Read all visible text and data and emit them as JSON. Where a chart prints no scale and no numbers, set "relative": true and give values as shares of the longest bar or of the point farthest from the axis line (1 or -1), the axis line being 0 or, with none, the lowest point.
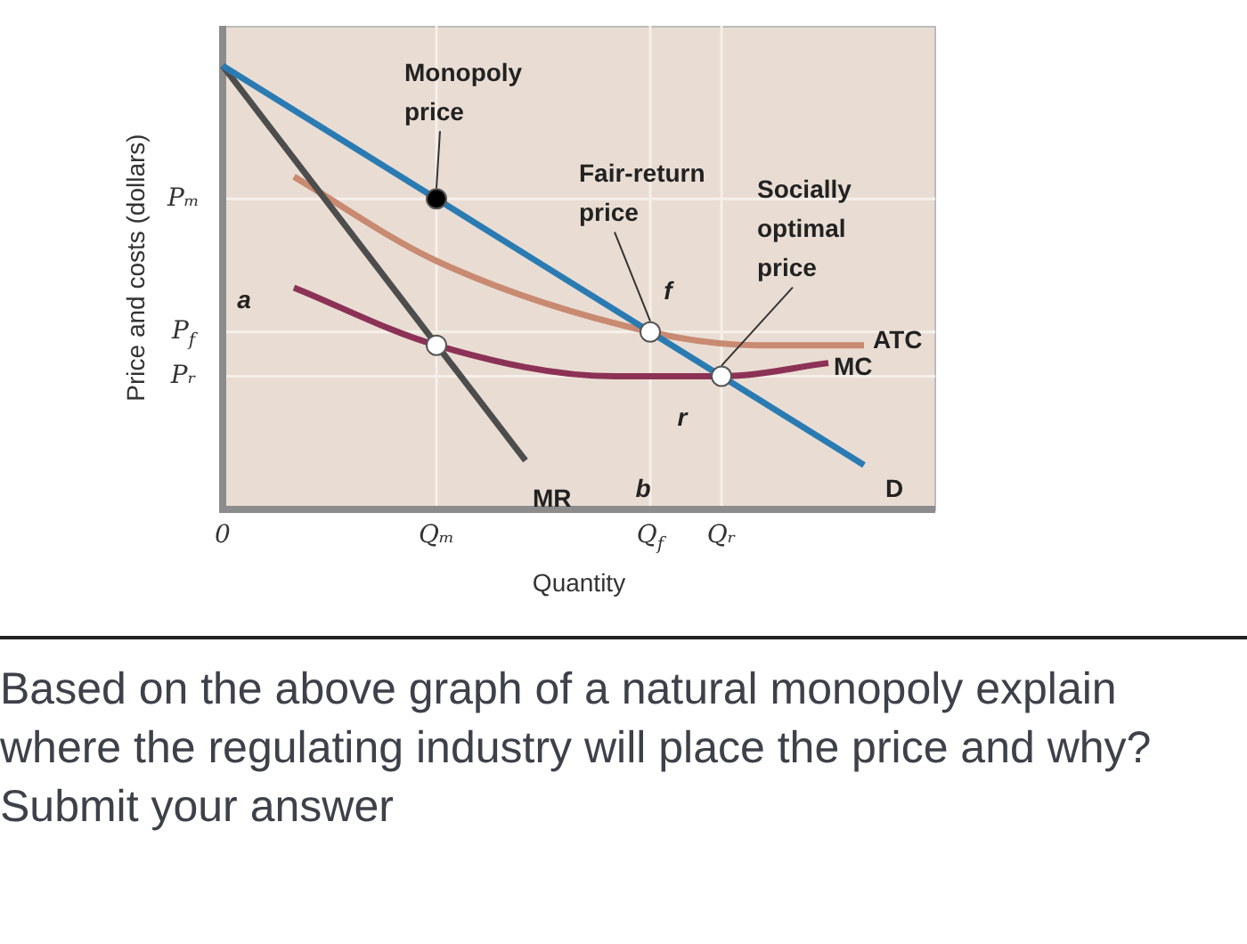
{
  "chart_data": {
    "type": "line",
    "relative": true,
    "xlabel": "Quantity",
    "ylabel": "Price and costs (dollars)",
    "categories": [
      "0",
      null,
      null,
      null,
      null,
      null,
      null,
      null,
      null,
      null,
      null,
      null,
      "Qₘ",
      null,
      null,
      null,
      null,
      null,
      null,
      null,
      null,
      null,
      null,
      null,
      "Q$_{f}$",
      null,
      null,
      null,
      "Qᵣ",
      null,
      null,
      null,
      null,
      null,
      null,
      null,
      null,
      null,
      null,
      null,
      null
    ],
    "series": [
      {
        "name": "D",
        "color": "#2b7bb3",
        "values": [
          1,
          null,
          null,
          null,
          null,
          null,
          null,
          null,
          null,
          null,
          null,
          null,
          null,
          null,
          null,
          null,
          null,
          null,
          null,
          null,
          null,
          null,
          null,
          null,
          null,
          null,
          null,
          null,
          null,
          null,
          null,
          null,
          null,
          null,
          null,
          null,
          0.1,
          null,
          null,
          null,
          null
        ]
      },
      {
        "name": "MR",
        "color": "#4d4d4d",
        "values": [
          1,
          null,
          null,
          null,
          null,
          null,
          null,
          null,
          null,
          null,
          null,
          null,
          null,
          null,
          null,
          null,
          null,
          0.11,
          null,
          null,
          null,
          null,
          null,
          null,
          null,
          null,
          null,
          null,
          null,
          null,
          null,
          null,
          null,
          null,
          null,
          null,
          null,
          null,
          null,
          null,
          null
        ]
      },
      {
        "name": "ATC",
        "color": "#c98a72",
        "values": [
          null,
          null,
          null,
          null,
          0.75,
          null,
          null,
          null,
          null,
          null,
          null,
          null,
          0.56,
          null,
          null,
          null,
          null,
          null,
          null,
          null,
          null,
          null,
          null,
          null,
          0.4,
          null,
          null,
          null,
          null,
          null,
          0.37,
          null,
          null,
          null,
          null,
          null,
          0.37,
          null,
          null,
          null,
          null
        ]
      },
      {
        "name": "MC",
        "color": "#8c3256",
        "values": [
          null,
          null,
          null,
          null,
          0.5,
          null,
          null,
          null,
          null,
          null,
          null,
          null,
          0.37,
          null,
          null,
          null,
          null,
          null,
          null,
          null,
          null,
          null,
          0.3,
          null,
          null,
          null,
          null,
          null,
          0.3,
          null,
          null,
          null,
          null,
          null,
          0.33,
          null,
          null,
          null,
          null,
          null,
          null
        ]
      },
      {
        "type": "scatter",
        "color": "#000000",
        "values": [
          null,
          null,
          null,
          null,
          null,
          null,
          null,
          null,
          null,
          null,
          null,
          null,
          0.7,
          null,
          null,
          null,
          null,
          null,
          null,
          null,
          null,
          null,
          null,
          null,
          null,
          null,
          null,
          null,
          null,
          null,
          null,
          null,
          null,
          null,
          null,
          null,
          null,
          null,
          null,
          null,
          null
        ]
      },
      {
        "type": "scatter",
        "color": "#ffffff",
        "values": [
          null,
          null,
          null,
          null,
          null,
          null,
          null,
          null,
          null,
          null,
          null,
          null,
          0.37,
          null,
          null,
          null,
          null,
          null,
          null,
          null,
          null,
          null,
          null,
          null,
          0.4,
          null,
          null,
          null,
          0.3,
          null,
          null,
          null,
          null,
          null,
          null,
          null,
          null,
          null,
          null,
          null,
          null
        ]
      }
    ],
    "ref_lines": [
      {
        "axis": "y",
        "value": 0.7,
        "label": "Pₘ",
        "color": "#f6f0ea"
      },
      {
        "axis": "y",
        "value": 0.4,
        "label": "P$_{f}$",
        "color": "#f6f0ea"
      },
      {
        "axis": "y",
        "value": 0.3,
        "label": "Pᵣ",
        "color": "#f6f0ea"
      },
      {
        "axis": "x",
        "value": "Qₘ",
        "color": "#f6f0ea"
      },
      {
        "axis": "x",
        "value": "Q$_{f}$",
        "color": "#f6f0ea"
      },
      {
        "axis": "x",
        "value": "Qᵣ",
        "color": "#f6f0ea"
      }
    ],
    "annotations": [
      {
        "text": "Monopoly price",
        "x": "Qₘ",
        "y": 0.7
      },
      {
        "text": "Fair-return price",
        "x": "Q$_{f}$",
        "y": 0.4
      },
      {
        "text": "Socially optimal price",
        "x": "Qᵣ",
        "y": 0.3
      },
      {
        "text": "f",
        "x": "Q$_{f}$",
        "y": 0.4
      },
      {
        "text": "r",
        "x": "Qᵣ",
        "y": 0.3
      },
      "a",
      "b",
      "Based on the above graph of a natural monopoly explain where the regulating industry will place the price and why? Submit your answer"
    ]
  }
}
